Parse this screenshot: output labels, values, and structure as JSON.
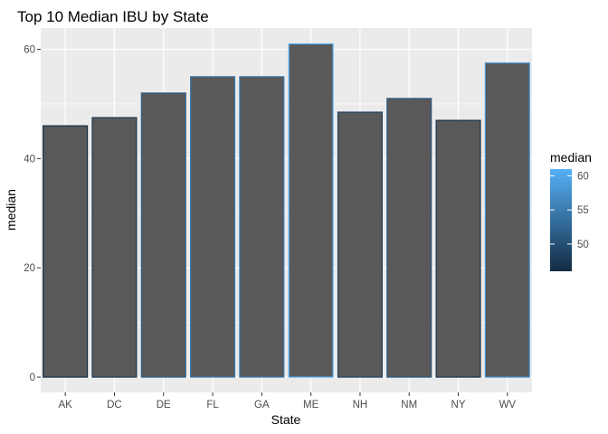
{
  "chart_data": {
    "type": "bar",
    "title": "Top 10 Median IBU by State",
    "xlabel": "State",
    "ylabel": "median",
    "categories": [
      "AK",
      "DC",
      "DE",
      "FL",
      "GA",
      "ME",
      "NH",
      "NM",
      "NY",
      "WV"
    ],
    "values": [
      46,
      47.5,
      52,
      55,
      55,
      61,
      48.5,
      51,
      47,
      57.5
    ],
    "ylim": [
      -2.8,
      63.9
    ],
    "yticks": [
      0,
      20,
      40,
      60
    ],
    "grid": true,
    "bar_fill": "#595959",
    "panel_background": "#ebebeb",
    "grid_color": "#ffffff",
    "legend": {
      "title": "median",
      "placement": "right",
      "type": "colorbar",
      "range": [
        46,
        61
      ],
      "ticks": [
        50,
        55,
        60
      ],
      "low_color": "#132b43",
      "high_color": "#56b1f7"
    }
  }
}
